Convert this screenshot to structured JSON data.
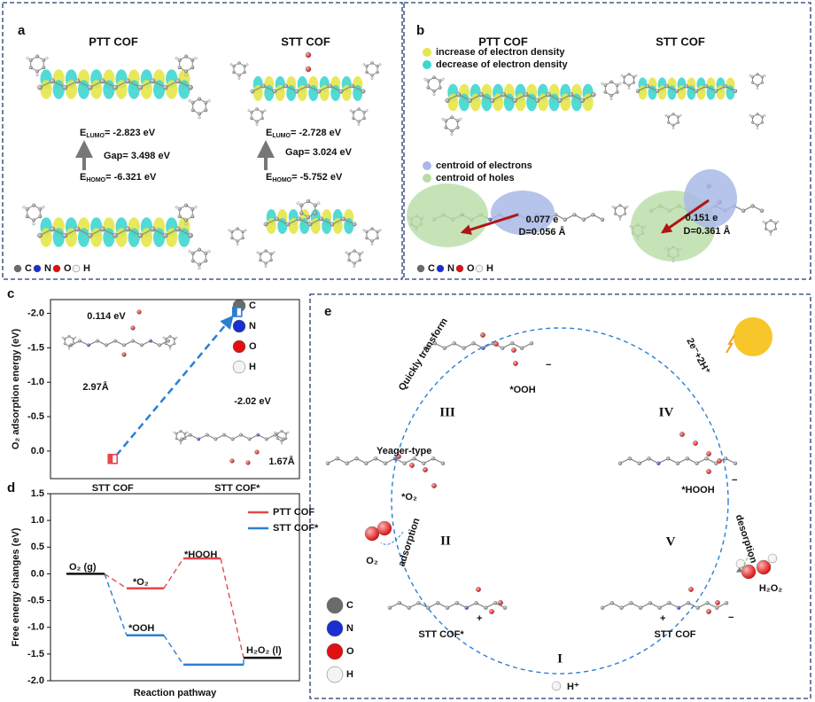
{
  "panel_a": {
    "label": "a",
    "ptt": {
      "title": "PTT COF",
      "lumo": {
        "symbol": "E",
        "sub": "LUMO",
        "value": "= -2.823 eV"
      },
      "gap": "Gap= 3.498 eV",
      "homo": {
        "symbol": "E",
        "sub": "HOMO",
        "value": "= -6.321 eV"
      }
    },
    "stt": {
      "title": "STT COF",
      "lumo": {
        "symbol": "E",
        "sub": "LUMO",
        "value": "= -2.728 eV"
      },
      "gap": "Gap= 3.024 eV",
      "homo": {
        "symbol": "E",
        "sub": "HOMO",
        "value": "= -5.752 eV"
      }
    },
    "atoms": [
      "C",
      "N",
      "O",
      "H"
    ]
  },
  "panel_b": {
    "label": "b",
    "titles": [
      "PTT COF",
      "STT COF"
    ],
    "density_legend": [
      "increase of electron density",
      "decrease of electron density"
    ],
    "centroid_legend": [
      "centroid of electrons",
      "centroid of holes"
    ],
    "ptt_transfer": [
      "0.077 e",
      "D=0.056 Å"
    ],
    "stt_transfer": [
      "0.151 e",
      "D=0.361 Å"
    ],
    "atoms": [
      "C",
      "N",
      "O",
      "H"
    ]
  },
  "chart_data": [
    {
      "type": "scatter",
      "label": "c",
      "ylabel": "O₂ adsorption energy (eV)",
      "categories": [
        "STT COF",
        "STT COF*"
      ],
      "values": [
        0.114,
        -2.02
      ],
      "value_labels": [
        "0.114 eV",
        "-2.02 eV"
      ],
      "colors": [
        "#e8474a",
        "#2a7fd4"
      ],
      "ylim": [
        0.4,
        -2.2
      ],
      "yticks": [
        {
          "value": -2.0,
          "label": "-2.0"
        },
        -1.5,
        {
          "value": -1.0,
          "label": "-1.0"
        },
        -0.5,
        {
          "value": 0,
          "label": "0.0"
        }
      ],
      "annotations": [
        "2.97Å",
        "1.67Å"
      ],
      "atoms": [
        "C",
        "N",
        "O",
        "H"
      ]
    },
    {
      "type": "energy_levels",
      "label": "d",
      "xlabel": "Reaction pathway",
      "ylabel": "Free energy changes (eV)",
      "ylim": [
        -2.0,
        1.5
      ],
      "yticks": [
        {
          "value": -2.0,
          "label": "-2.0"
        },
        -1.5,
        {
          "value": -1.0,
          "label": "-1.0"
        },
        -0.5,
        {
          "value": 0,
          "label": "0.0"
        },
        0.5,
        {
          "value": 1.0,
          "label": "1.0"
        },
        1.5
      ],
      "series": [
        {
          "name": "PTT COF",
          "color": "#e8474a",
          "values": [
            0,
            -0.27,
            0.29,
            -1.57
          ]
        },
        {
          "name": "STT COF*",
          "color": "#2a7fd4",
          "values": [
            0,
            -1.15,
            -1.7,
            -1.57
          ]
        }
      ],
      "annotations": [
        "O₂ (g)",
        "*O₂",
        "*HOOH",
        "*OOH",
        "H₂O₂ (l)"
      ]
    }
  ],
  "panel_e": {
    "label": "e",
    "numerals": [
      "I",
      "II",
      "III",
      "IV",
      "V"
    ],
    "species": [
      "*OOH",
      "*HOOH",
      "H₂O₂",
      "*O₂",
      "O₂",
      "STT COF*",
      "STT COF",
      "H⁺"
    ],
    "steps": [
      "Quickly transform",
      "2e⁻+2H⁺",
      "desorption",
      "adsorption"
    ],
    "yeager": "Yeager-type",
    "atoms": [
      "C",
      "N",
      "O",
      "H"
    ]
  }
}
